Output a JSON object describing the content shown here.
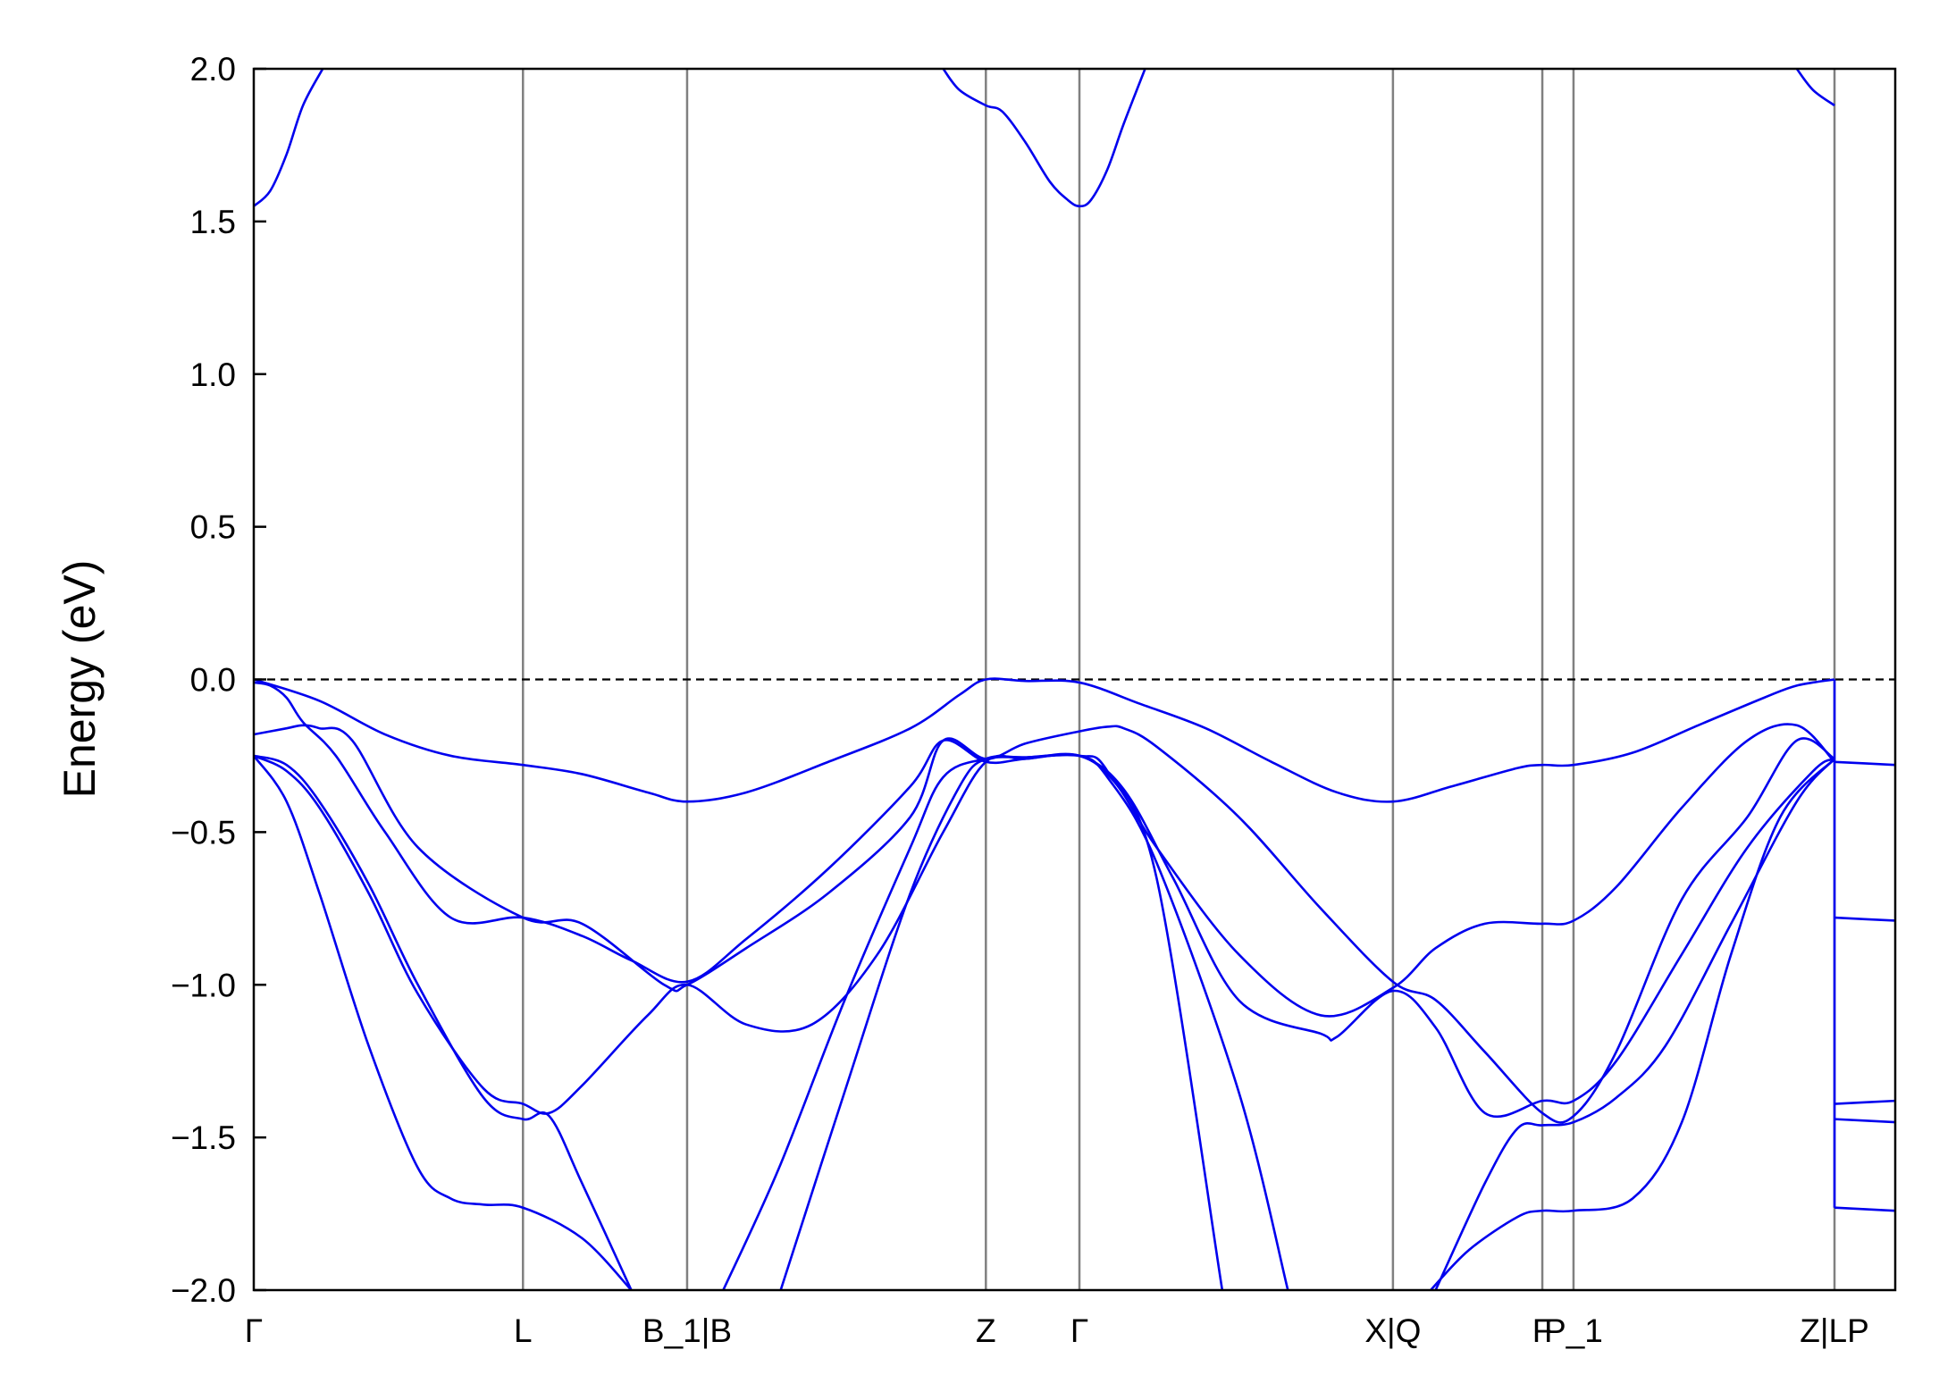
{
  "chart_data": {
    "type": "line",
    "ylabel": "Energy (eV)",
    "xlabel": "",
    "ylim": [
      -2.0,
      2.0
    ],
    "yticks": [
      {
        "value": 2.0,
        "label": "2.0"
      },
      {
        "value": 1.5,
        "label": "1.5"
      },
      {
        "value": 1.0,
        "label": "1.0"
      },
      {
        "value": 0.5,
        "label": "0.5"
      },
      {
        "value": 0.0,
        "label": "0.0"
      },
      {
        "value": -0.5,
        "label": "−0.5"
      },
      {
        "value": -1.0,
        "label": "−1.0"
      },
      {
        "value": -1.5,
        "label": "−1.5"
      },
      {
        "value": -2.0,
        "label": "−2.0"
      }
    ],
    "kpoints": [
      {
        "label": "Γ",
        "x": 0.0
      },
      {
        "label": "L",
        "x": 0.164
      },
      {
        "label": "B_1|B",
        "x": 0.264
      },
      {
        "label": "Z",
        "x": 0.446
      },
      {
        "label": "Γ",
        "x": 0.503
      },
      {
        "label": "X|Q",
        "x": 0.694
      },
      {
        "label": "F",
        "x": 0.785
      },
      {
        "label": "P_1",
        "x": 0.804
      },
      {
        "label": "Z|LP",
        "x": 0.963
      }
    ],
    "xlim": [
      0.0,
      1.0
    ],
    "fermi_level": 0.0,
    "grid": false,
    "colors": {
      "bands": "#0000ee",
      "kpoint_lines": "#808080",
      "fermi": "#000000"
    },
    "series": [
      {
        "x": [
          0.0,
          0.01,
          0.02,
          0.03,
          0.042
        ],
        "y": [
          1.55,
          1.6,
          1.72,
          1.88,
          2.0
        ]
      },
      {
        "x": [
          0.42,
          0.43,
          0.446,
          0.456,
          0.47,
          0.485,
          0.496,
          0.503,
          0.51,
          0.52,
          0.53,
          0.543
        ],
        "y": [
          2.0,
          1.93,
          1.88,
          1.86,
          1.76,
          1.63,
          1.57,
          1.55,
          1.57,
          1.67,
          1.82,
          2.0
        ]
      },
      {
        "x": [
          0.94,
          0.95,
          0.963
        ],
        "y": [
          2.0,
          1.93,
          1.88
        ]
      },
      {
        "x": [
          0.0,
          0.04,
          0.08,
          0.12,
          0.164,
          0.2,
          0.24,
          0.264,
          0.3,
          0.35,
          0.4,
          0.43,
          0.446,
          0.47,
          0.503,
          0.54,
          0.58,
          0.62,
          0.66,
          0.694,
          0.73,
          0.77,
          0.785,
          0.804,
          0.84,
          0.88,
          0.92,
          0.94,
          0.963
        ],
        "y": [
          0.0,
          -0.07,
          -0.18,
          -0.25,
          -0.28,
          -0.31,
          -0.37,
          -0.4,
          -0.37,
          -0.27,
          -0.16,
          -0.05,
          0.0,
          -0.005,
          -0.01,
          -0.08,
          -0.16,
          -0.27,
          -0.37,
          -0.4,
          -0.35,
          -0.29,
          -0.28,
          -0.28,
          -0.24,
          -0.15,
          -0.06,
          -0.02,
          0.0
        ]
      },
      {
        "x": [
          0.0,
          0.01,
          0.02,
          0.03,
          0.05,
          0.08,
          0.12,
          0.164,
          0.2,
          0.23,
          0.264,
          0.3,
          0.35,
          0.4,
          0.42,
          0.446,
          0.47,
          0.503,
          0.525,
          0.55,
          0.6,
          0.65,
          0.694,
          0.72,
          0.75,
          0.785,
          0.804,
          0.83,
          0.87,
          0.91,
          0.94,
          0.963
        ],
        "y": [
          -0.01,
          -0.02,
          -0.06,
          -0.14,
          -0.25,
          -0.5,
          -0.78,
          -0.78,
          -0.84,
          -0.92,
          -0.99,
          -0.85,
          -0.62,
          -0.35,
          -0.2,
          -0.27,
          -0.26,
          -0.25,
          -0.34,
          -0.55,
          -0.9,
          -1.1,
          -1.01,
          -0.88,
          -0.8,
          -0.8,
          -0.79,
          -0.68,
          -0.42,
          -0.2,
          -0.15,
          -0.27
        ]
      },
      {
        "x": [
          0.0,
          0.02,
          0.03,
          0.04,
          0.06,
          0.1,
          0.164,
          0.2,
          0.25,
          0.264,
          0.3,
          0.35,
          0.4,
          0.42,
          0.446,
          0.47,
          0.503,
          0.52,
          0.53,
          0.55,
          0.6,
          0.65,
          0.694,
          0.72,
          0.75,
          0.785,
          0.804,
          0.83,
          0.87,
          0.91,
          0.94,
          0.963
        ],
        "y": [
          -0.18,
          -0.16,
          -0.15,
          -0.16,
          -0.2,
          -0.55,
          -0.78,
          -0.8,
          -1.0,
          -1.0,
          -0.88,
          -0.7,
          -0.45,
          -0.2,
          -0.26,
          -0.21,
          -0.17,
          -0.155,
          -0.16,
          -0.22,
          -0.45,
          -0.75,
          -0.99,
          -1.05,
          -1.22,
          -1.42,
          -1.43,
          -1.22,
          -0.72,
          -0.45,
          -0.2,
          -0.26
        ]
      },
      {
        "x": [
          0.0,
          0.02,
          0.04,
          0.07,
          0.1,
          0.14,
          0.164,
          0.18,
          0.2,
          0.24,
          0.264,
          0.3,
          0.34,
          0.38,
          0.42,
          0.446,
          0.47,
          0.503,
          0.53,
          0.56,
          0.6,
          0.65,
          0.66,
          0.694,
          0.72,
          0.75,
          0.785,
          0.804,
          0.83,
          0.87,
          0.91,
          0.95,
          0.963
        ],
        "y": [
          -0.25,
          -0.3,
          -0.42,
          -0.7,
          -1.03,
          -1.34,
          -1.39,
          -1.42,
          -1.33,
          -1.1,
          -1.0,
          -1.13,
          -1.13,
          -0.9,
          -0.5,
          -0.27,
          -0.26,
          -0.25,
          -0.36,
          -0.65,
          -1.05,
          -1.16,
          -1.17,
          -1.02,
          -1.14,
          -1.42,
          -1.38,
          -1.38,
          -1.25,
          -0.9,
          -0.55,
          -0.3,
          -0.26
        ]
      },
      {
        "x": [
          0.0,
          0.02,
          0.04,
          0.07,
          0.1,
          0.14,
          0.164,
          0.18,
          0.2,
          0.23
        ],
        "y": [
          -0.25,
          -0.28,
          -0.4,
          -0.67,
          -1.0,
          -1.37,
          -1.44,
          -1.43,
          -1.65,
          -2.0
        ]
      },
      {
        "x": [
          0.0,
          0.02,
          0.04,
          0.07,
          0.1,
          0.12,
          0.14,
          0.164,
          0.2,
          0.23
        ],
        "y": [
          -0.25,
          -0.4,
          -0.7,
          -1.2,
          -1.6,
          -1.7,
          -1.72,
          -1.73,
          -1.83,
          -2.0
        ]
      },
      {
        "x": [
          0.286,
          0.32,
          0.36,
          0.4,
          0.42,
          0.446,
          0.47,
          0.503,
          0.52,
          0.55,
          0.6,
          0.63
        ],
        "y": [
          -2.0,
          -1.6,
          -1.05,
          -0.55,
          -0.32,
          -0.26,
          -0.255,
          -0.25,
          -0.32,
          -0.6,
          -1.35,
          -2.0
        ]
      },
      {
        "x": [
          0.321,
          0.36,
          0.4,
          0.43,
          0.446,
          0.47,
          0.503,
          0.52,
          0.55,
          0.59
        ],
        "y": [
          -2.0,
          -1.35,
          -0.7,
          -0.35,
          -0.26,
          -0.255,
          -0.25,
          -0.3,
          -0.65,
          -2.0
        ]
      },
      {
        "x": [
          0.72,
          0.75,
          0.77,
          0.785,
          0.804,
          0.83,
          0.86,
          0.9,
          0.94,
          0.963
        ],
        "y": [
          -2.0,
          -1.65,
          -1.47,
          -1.46,
          -1.45,
          -1.37,
          -1.2,
          -0.8,
          -0.4,
          -0.26
        ]
      },
      {
        "x": [
          0.717,
          0.74,
          0.77,
          0.785,
          0.804,
          0.84,
          0.87,
          0.9,
          0.93,
          0.963
        ],
        "y": [
          -2.0,
          -1.87,
          -1.76,
          -1.74,
          -1.74,
          -1.7,
          -1.45,
          -0.9,
          -0.45,
          -0.26
        ]
      },
      {
        "x": [
          0.963,
          0.963
        ],
        "y": [
          0.0,
          -1.73
        ]
      },
      {
        "x": [
          0.963,
          1.0
        ],
        "y": [
          -0.27,
          -0.28
        ]
      },
      {
        "x": [
          0.963,
          1.0
        ],
        "y": [
          -0.78,
          -0.79
        ]
      },
      {
        "x": [
          0.963,
          1.0
        ],
        "y": [
          -1.39,
          -1.38
        ]
      },
      {
        "x": [
          0.963,
          1.0
        ],
        "y": [
          -1.44,
          -1.45
        ]
      },
      {
        "x": [
          0.963,
          1.0
        ],
        "y": [
          -1.73,
          -1.74
        ]
      }
    ]
  }
}
